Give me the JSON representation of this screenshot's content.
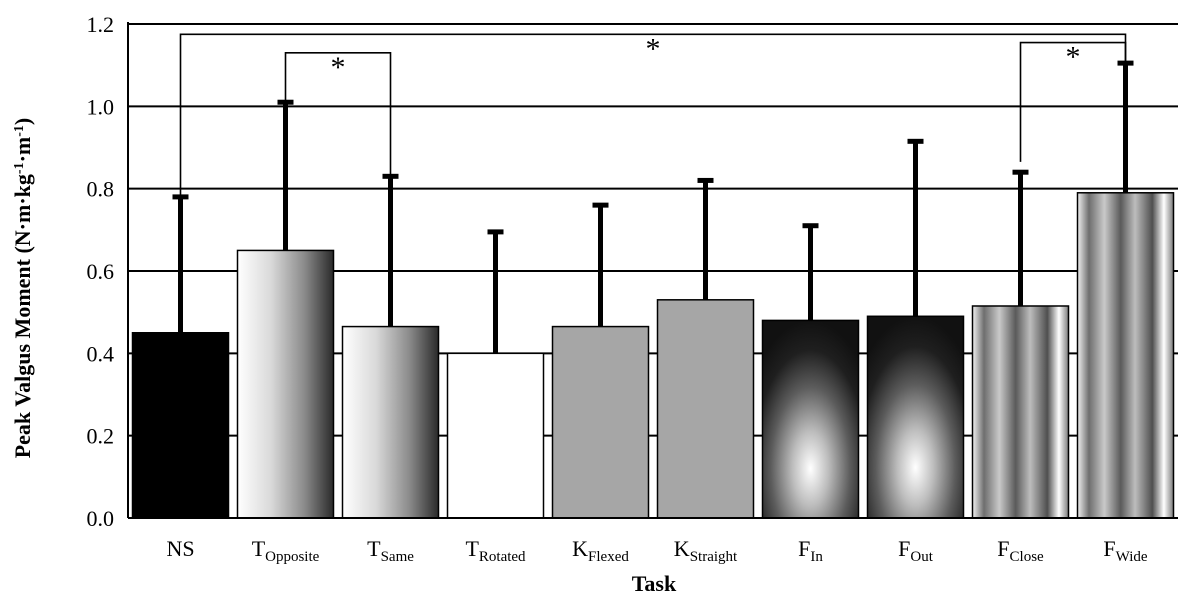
{
  "chart_data": {
    "type": "bar",
    "title": "",
    "xlabel": "Task",
    "ylabel": "Peak Valgus Moment (N·m·kg⁻¹·m⁻¹)",
    "ylabel_main": "Peak Valgus Moment (N·m·kg",
    "ylabel_sup1": "-1",
    "ylabel_mid": "·m",
    "ylabel_sup2": "-1",
    "ylabel_end": ")",
    "ylim": [
      0,
      1.2
    ],
    "yticks": [
      "0.0",
      "0.2",
      "0.4",
      "0.6",
      "0.8",
      "1.0",
      "1.2"
    ],
    "grid": true,
    "categories": [
      {
        "base": "NS",
        "sub": ""
      },
      {
        "base": "T",
        "sub": "Opposite"
      },
      {
        "base": "T",
        "sub": "Same"
      },
      {
        "base": "T",
        "sub": "Rotated"
      },
      {
        "base": "K",
        "sub": "Flexed"
      },
      {
        "base": "K",
        "sub": "Straight"
      },
      {
        "base": "F",
        "sub": "In"
      },
      {
        "base": "F",
        "sub": "Out"
      },
      {
        "base": "F",
        "sub": "Close"
      },
      {
        "base": "F",
        "sub": "Wide"
      }
    ],
    "values": [
      0.45,
      0.65,
      0.465,
      0.4,
      0.465,
      0.53,
      0.48,
      0.49,
      0.515,
      0.79
    ],
    "error_upper": [
      0.78,
      1.01,
      0.83,
      0.695,
      0.76,
      0.82,
      0.71,
      0.915,
      0.84,
      1.105
    ],
    "fills": [
      "solid-black",
      "gradient-light-dark",
      "gradient-light-dark",
      "solid-white",
      "solid-gray",
      "solid-gray",
      "radial-dark",
      "radial-dark",
      "banded-gray",
      "banded-gray"
    ],
    "significance": [
      {
        "from": 0,
        "to": 9,
        "label": "*"
      },
      {
        "from": 1,
        "to": 2,
        "label": "*"
      },
      {
        "from": 8,
        "to": 9,
        "label": "*"
      }
    ]
  }
}
